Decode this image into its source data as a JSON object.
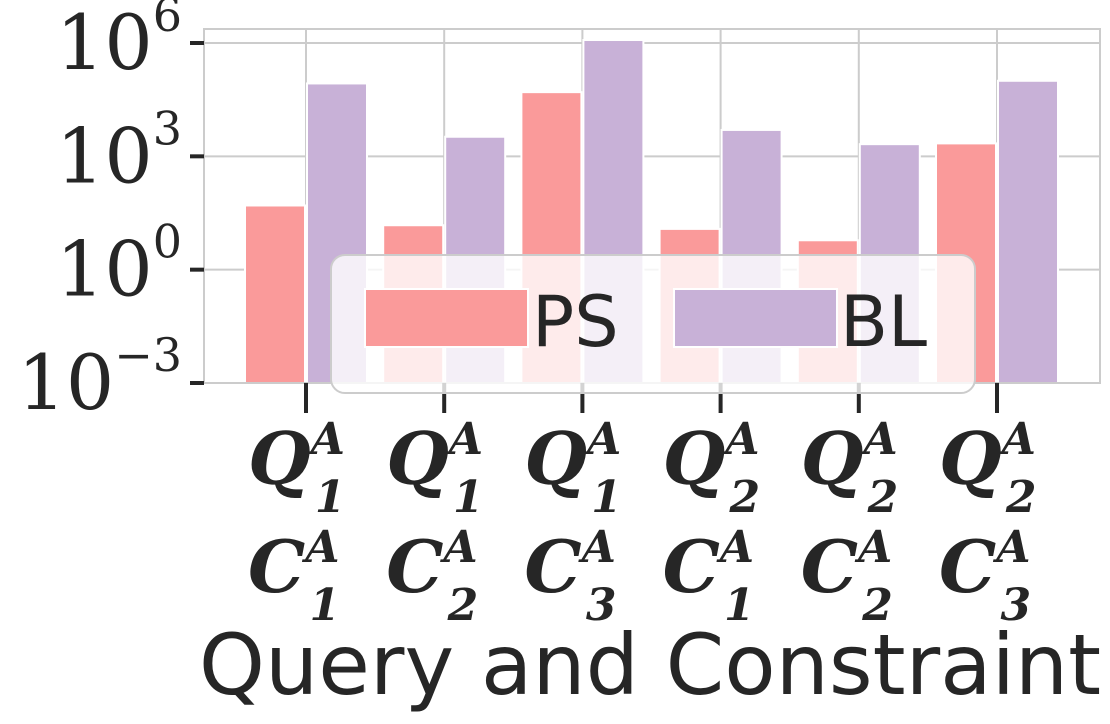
{
  "chart_data": {
    "type": "bar",
    "y_scale": "log",
    "ylim": [
      0.001,
      1000000
    ],
    "y_ticks": [
      {
        "value": 0.001,
        "base": "10",
        "exp": "−3"
      },
      {
        "value": 1,
        "base": "10",
        "exp": "0"
      },
      {
        "value": 1000,
        "base": "10",
        "exp": "3"
      },
      {
        "value": 1000000,
        "base": "10",
        "exp": "6"
      }
    ],
    "categories": [
      {
        "q": "Q",
        "q_sup": "A",
        "q_sub": "1",
        "c": "C",
        "c_sup": "A",
        "c_sub": "1"
      },
      {
        "q": "Q",
        "q_sup": "A",
        "q_sub": "1",
        "c": "C",
        "c_sup": "A",
        "c_sub": "2"
      },
      {
        "q": "Q",
        "q_sup": "A",
        "q_sub": "1",
        "c": "C",
        "c_sup": "A",
        "c_sub": "3"
      },
      {
        "q": "Q",
        "q_sup": "A",
        "q_sub": "2",
        "c": "C",
        "c_sup": "A",
        "c_sub": "1"
      },
      {
        "q": "Q",
        "q_sup": "A",
        "q_sub": "2",
        "c": "C",
        "c_sup": "A",
        "c_sub": "2"
      },
      {
        "q": "Q",
        "q_sup": "A",
        "q_sub": "2",
        "c": "C",
        "c_sup": "A",
        "c_sub": "3"
      }
    ],
    "series": [
      {
        "name": "PS",
        "color": "#fa9a9a",
        "values": [
          50,
          15,
          50000,
          12,
          6,
          2200
        ]
      },
      {
        "name": "BL",
        "color": "#c8b1d7",
        "values": [
          85000,
          3300,
          1200000,
          5000,
          2100,
          100000
        ]
      }
    ],
    "xlabel": "Query and Constraint",
    "ylabel": "",
    "grid": true,
    "legend_position": "lower-center"
  }
}
